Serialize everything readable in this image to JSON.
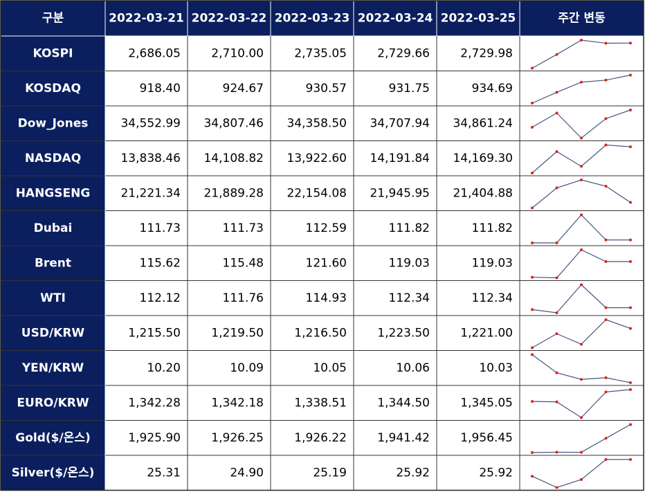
{
  "table": {
    "header": [
      "구분",
      "2022-03-21",
      "2022-03-22",
      "2022-03-23",
      "2022-03-24",
      "2022-03-25",
      "주간 변동"
    ],
    "rows": [
      {
        "name": "KOSPI",
        "values": [
          2686.05,
          2710.0,
          2735.05,
          2729.66,
          2729.98
        ],
        "value_labels": [
          "2,686.05",
          "2,710.00",
          "2,735.05",
          "2,729.66",
          "2,729.98"
        ]
      },
      {
        "name": "KOSDAQ",
        "values": [
          918.4,
          924.67,
          930.57,
          931.75,
          934.69
        ],
        "value_labels": [
          "918.40",
          "924.67",
          "930.57",
          "931.75",
          "934.69"
        ]
      },
      {
        "name": "Dow_Jones",
        "values": [
          34552.99,
          34807.46,
          34358.5,
          34707.94,
          34861.24
        ],
        "value_labels": [
          "34,552.99",
          "34,807.46",
          "34,358.50",
          "34,707.94",
          "34,861.24"
        ]
      },
      {
        "name": "NASDAQ",
        "values": [
          13838.46,
          14108.82,
          13922.6,
          14191.84,
          14169.3
        ],
        "value_labels": [
          "13,838.46",
          "14,108.82",
          "13,922.60",
          "14,191.84",
          "14,169.30"
        ]
      },
      {
        "name": "HANGSENG",
        "values": [
          21221.34,
          21889.28,
          22154.08,
          21945.95,
          21404.88
        ],
        "value_labels": [
          "21,221.34",
          "21,889.28",
          "22,154.08",
          "21,945.95",
          "21,404.88"
        ]
      },
      {
        "name": "Dubai",
        "values": [
          111.73,
          111.73,
          112.59,
          111.82,
          111.82
        ],
        "value_labels": [
          "111.73",
          "111.73",
          "112.59",
          "111.82",
          "111.82"
        ]
      },
      {
        "name": "Brent",
        "values": [
          115.62,
          115.48,
          121.6,
          119.03,
          119.03
        ],
        "value_labels": [
          "115.62",
          "115.48",
          "121.60",
          "119.03",
          "119.03"
        ]
      },
      {
        "name": "WTI",
        "values": [
          112.12,
          111.76,
          114.93,
          112.34,
          112.34
        ],
        "value_labels": [
          "112.12",
          "111.76",
          "114.93",
          "112.34",
          "112.34"
        ]
      },
      {
        "name": "USD/KRW",
        "values": [
          1215.5,
          1219.5,
          1216.5,
          1223.5,
          1221.0
        ],
        "value_labels": [
          "1,215.50",
          "1,219.50",
          "1,216.50",
          "1,223.50",
          "1,221.00"
        ]
      },
      {
        "name": "YEN/KRW",
        "values": [
          10.2,
          10.09,
          10.05,
          10.06,
          10.03
        ],
        "value_labels": [
          "10.20",
          "10.09",
          "10.05",
          "10.06",
          "10.03"
        ]
      },
      {
        "name": "EURO/KRW",
        "values": [
          1342.28,
          1342.18,
          1338.51,
          1344.5,
          1345.05
        ],
        "value_labels": [
          "1,342.28",
          "1,342.18",
          "1,338.51",
          "1,344.50",
          "1,345.05"
        ]
      },
      {
        "name": "Gold($/온스)",
        "values": [
          1925.9,
          1926.25,
          1926.22,
          1941.42,
          1956.45
        ],
        "value_labels": [
          "1,925.90",
          "1,926.25",
          "1,926.22",
          "1,941.42",
          "1,956.45"
        ]
      },
      {
        "name": "Silver($/온스)",
        "values": [
          25.31,
          24.9,
          25.19,
          25.92,
          25.92
        ],
        "value_labels": [
          "25.31",
          "24.90",
          "25.19",
          "25.92",
          "25.92"
        ]
      }
    ]
  }
}
